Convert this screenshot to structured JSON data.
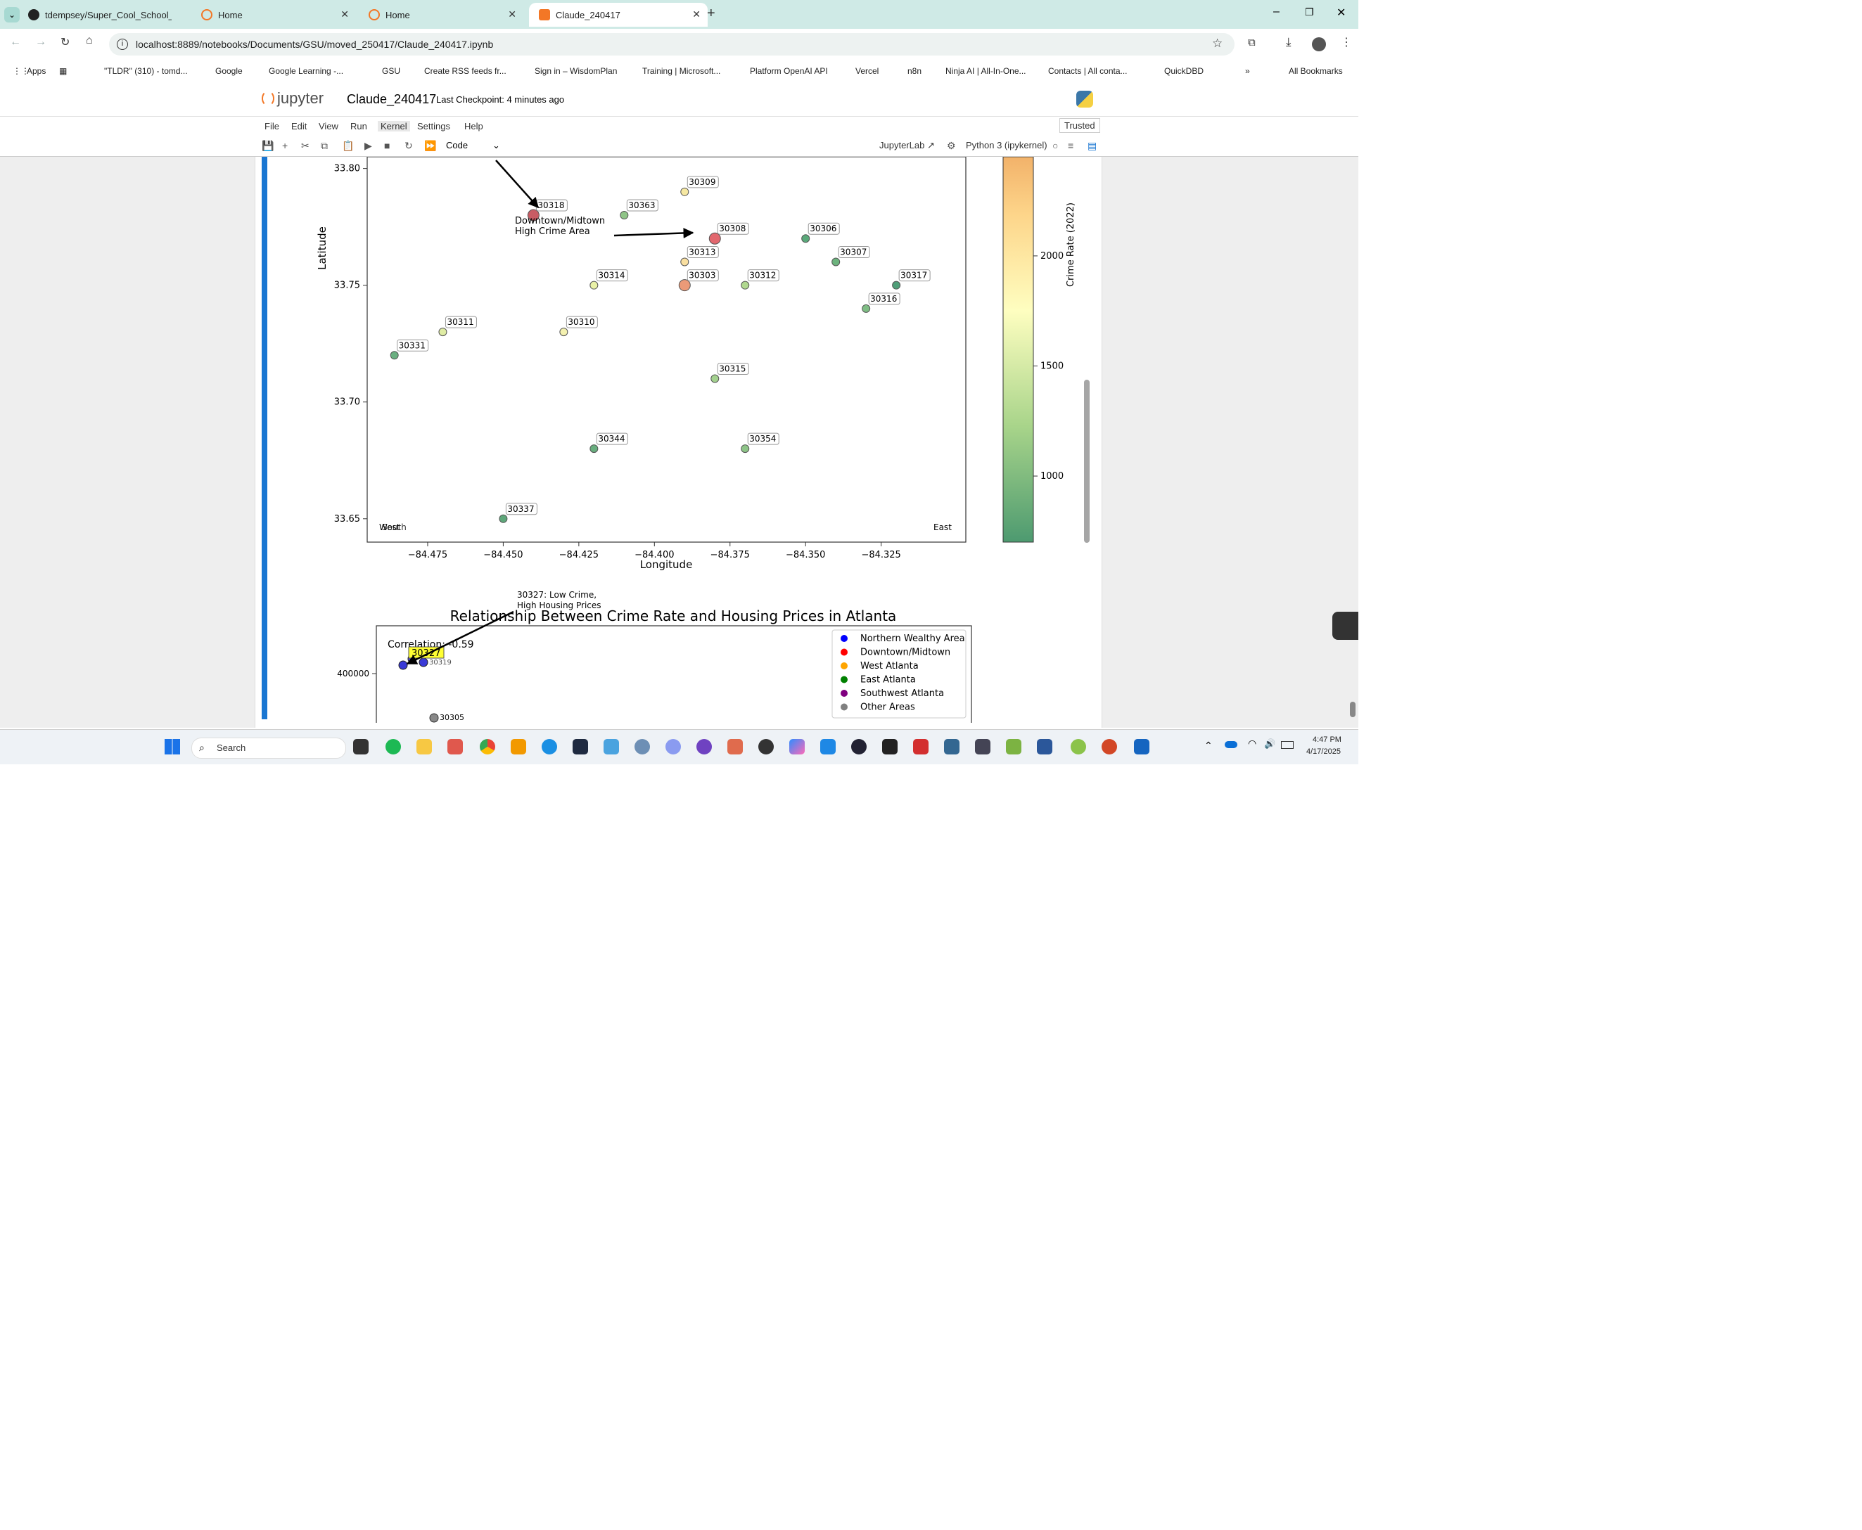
{
  "browser": {
    "tabs": [
      {
        "title": "tdempsey/Super_Cool_School_I",
        "icon": "github-icon"
      },
      {
        "title": "Home",
        "icon": "jupyter-icon"
      },
      {
        "title": "Home",
        "icon": "jupyter-icon"
      },
      {
        "title": "Claude_240417",
        "icon": "jupyter-icon"
      }
    ],
    "url": "localhost:8889/notebooks/Documents/GSU/moved_250417/Claude_240417.ipynb",
    "bookmarks": [
      "Apps",
      "\"TLDR\" (310) - tomd...",
      "Google",
      "Google Learning -...",
      "GSU",
      "Create RSS feeds fr...",
      "Sign in – WisdomPlan",
      "Training | Microsoft...",
      "Platform OpenAI API",
      "Vercel",
      "n8n",
      "Ninja AI | All-In-One...",
      "Contacts | All conta...",
      "QuickDBD"
    ],
    "all_bookmarks": "All Bookmarks"
  },
  "jupyter": {
    "logo": "jupyter",
    "notebook_name": "Claude_240417",
    "checkpoint": "Last Checkpoint: 4 minutes ago",
    "trusted": "Trusted",
    "menu": [
      "File",
      "Edit",
      "View",
      "Run",
      "Kernel",
      "Settings",
      "Help"
    ],
    "cell_type": "Code",
    "jupyterlab_link": "JupyterLab",
    "kernel": "Python 3 (ipykernel)"
  },
  "chart_data": [
    {
      "type": "scatter",
      "title": "",
      "xlabel": "Longitude",
      "ylabel": "Latitude",
      "xlim": [
        -84.495,
        -84.297
      ],
      "ylim": [
        33.64,
        33.805
      ],
      "x_ticks": [
        "−84.475",
        "−84.450",
        "−84.425",
        "−84.400",
        "−84.375",
        "−84.350",
        "−84.325"
      ],
      "y_ticks": [
        "33.65",
        "33.70",
        "33.75",
        "33.80"
      ],
      "colorbar": {
        "label": "Crime Rate (2022)",
        "ticks": [
          "1000",
          "1500",
          "2000"
        ],
        "colors": [
          "#4d9a70",
          "#a8d48a",
          "#fefec0",
          "#fdd58a",
          "#f2b26a"
        ]
      },
      "corner_labels": [
        "West",
        "South",
        "East"
      ],
      "annotation": "Downtown/Midtown\nHigh Crime Area",
      "points": [
        {
          "label": "30318",
          "x": -84.44,
          "y": 33.78,
          "color": "#c85c64"
        },
        {
          "label": "30363",
          "x": -84.41,
          "y": 33.78,
          "color": "#8fc487"
        },
        {
          "label": "30309",
          "x": -84.39,
          "y": 33.79,
          "color": "#f6e8a2"
        },
        {
          "label": "30308",
          "x": -84.38,
          "y": 33.77,
          "color": "#e2676e"
        },
        {
          "label": "30306",
          "x": -84.35,
          "y": 33.77,
          "color": "#5aa97a"
        },
        {
          "label": "30313",
          "x": -84.39,
          "y": 33.76,
          "color": "#f9dfa0"
        },
        {
          "label": "30307",
          "x": -84.34,
          "y": 33.76,
          "color": "#6cb37d"
        },
        {
          "label": "30314",
          "x": -84.42,
          "y": 33.75,
          "color": "#e9f1a6"
        },
        {
          "label": "30303",
          "x": -84.39,
          "y": 33.75,
          "color": "#eb9a78"
        },
        {
          "label": "30312",
          "x": -84.37,
          "y": 33.75,
          "color": "#b0d88f"
        },
        {
          "label": "30317",
          "x": -84.32,
          "y": 33.75,
          "color": "#4f9e78"
        },
        {
          "label": "30316",
          "x": -84.33,
          "y": 33.74,
          "color": "#7ebd84"
        },
        {
          "label": "30311",
          "x": -84.47,
          "y": 33.73,
          "color": "#dfeca4"
        },
        {
          "label": "30310",
          "x": -84.43,
          "y": 33.73,
          "color": "#f4f1b0"
        },
        {
          "label": "30331",
          "x": -84.486,
          "y": 33.72,
          "color": "#6aaf80"
        },
        {
          "label": "30315",
          "x": -84.38,
          "y": 33.71,
          "color": "#a3d18e"
        },
        {
          "label": "30344",
          "x": -84.42,
          "y": 33.68,
          "color": "#68ae7e"
        },
        {
          "label": "30354",
          "x": -84.37,
          "y": 33.68,
          "color": "#8dc487"
        },
        {
          "label": "30337",
          "x": -84.45,
          "y": 33.65,
          "color": "#5ea77a"
        }
      ]
    },
    {
      "type": "scatter",
      "title": "Relationship Between Crime Rate and Housing Prices in Atlanta",
      "y_ticks": [
        "400000"
      ],
      "correlation_text": "Correlation: -0.59",
      "annotation": "30327: Low Crime,\nHigh Housing Prices",
      "highlight_label": "30327",
      "point_labels": [
        "30305",
        "30319"
      ],
      "legend": [
        {
          "name": "Northern Wealthy Area",
          "color": "#0000ff"
        },
        {
          "name": "Downtown/Midtown",
          "color": "#ff0000"
        },
        {
          "name": "West Atlanta",
          "color": "#ffa500"
        },
        {
          "name": "East Atlanta",
          "color": "#008000"
        },
        {
          "name": "Southwest Atlanta",
          "color": "#800080"
        },
        {
          "name": "Other Areas",
          "color": "#808080"
        }
      ]
    }
  ],
  "taskbar": {
    "search": "Search",
    "time": "4:47 PM",
    "date": "4/17/2025"
  }
}
